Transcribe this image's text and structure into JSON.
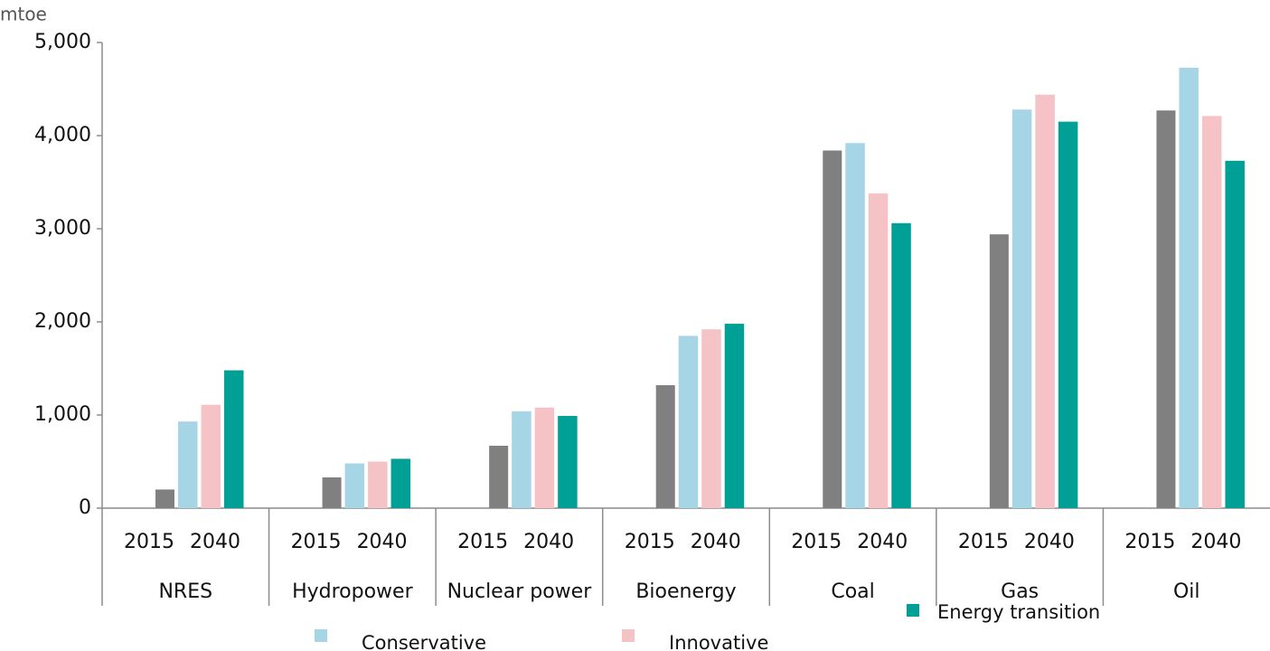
{
  "chart_data": {
    "type": "bar",
    "unit_label": "mtoe",
    "categories": [
      "NRES",
      "Hydropower",
      "Nuclear power",
      "Bioenergy",
      "Coal",
      "Gas",
      "Oil"
    ],
    "base": {
      "label": "2015",
      "color": "#808080",
      "values": [
        200,
        330,
        670,
        1320,
        3840,
        2940,
        4270
      ]
    },
    "scenario_label": "2040",
    "series": [
      {
        "name": "Conservative",
        "color": "#a6d5e6",
        "values": [
          930,
          480,
          1040,
          1850,
          3920,
          4280,
          4730
        ]
      },
      {
        "name": "Innovative",
        "color": "#f5c2c6",
        "values": [
          1110,
          500,
          1080,
          1920,
          3380,
          4440,
          4210
        ]
      },
      {
        "name": "Energy transition",
        "color": "#00a096",
        "values": [
          1480,
          530,
          990,
          1980,
          3060,
          4150,
          3730
        ]
      }
    ],
    "ylim": [
      0,
      5000
    ],
    "yticks": [
      0,
      {
        "value": 1000,
        "label": "1,000"
      },
      {
        "value": 2000,
        "label": "2,000"
      },
      {
        "value": 3000,
        "label": "3,000"
      },
      {
        "value": 4000,
        "label": "4,000"
      },
      {
        "value": 5000,
        "label": "5,000"
      }
    ],
    "grid": false
  }
}
